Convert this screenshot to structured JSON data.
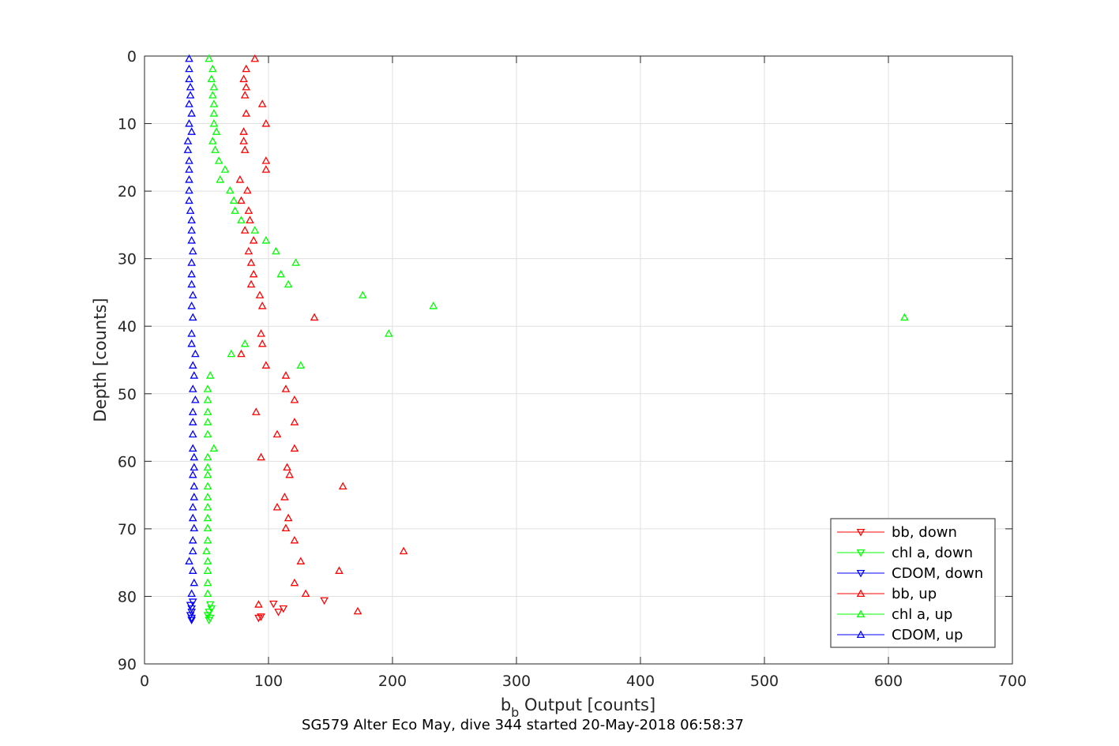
{
  "chart_data": {
    "type": "scatter",
    "xlabel": {
      "base": "b",
      "sub": "b",
      "rest": " Output [counts]"
    },
    "ylabel": "Depth [counts]",
    "caption": "SG579 Alter Eco May, dive 344 started 20-May-2018 06:58:37",
    "xlim": [
      0,
      700
    ],
    "ylim": [
      0,
      90
    ],
    "y_reversed": true,
    "grid": true,
    "legend_position": "bottom-right",
    "xticks": [
      "0",
      "100",
      "200",
      "300",
      "400",
      "500",
      "600",
      "700"
    ],
    "yticks": [
      "0",
      "10",
      "20",
      "30",
      "40",
      "50",
      "60",
      "70",
      "80",
      "90"
    ],
    "series": [
      {
        "name": "bb, down",
        "color": "#ff0000",
        "marker": "triangle-down",
        "points": [
          [
            104,
            81.1
          ],
          [
            108,
            82.3
          ],
          [
            112,
            81.8
          ],
          [
            92,
            83.2
          ],
          [
            94,
            83.0
          ],
          [
            145,
            80.6
          ]
        ]
      },
      {
        "name": "chl a, down",
        "color": "#00ff00",
        "marker": "triangle-down",
        "points": [
          [
            53,
            81.2
          ],
          [
            54,
            81.8
          ],
          [
            52,
            82.3
          ],
          [
            51,
            82.8
          ],
          [
            53,
            83.2
          ],
          [
            52,
            83.5
          ]
        ]
      },
      {
        "name": "CDOM, down",
        "color": "#0000ff",
        "marker": "triangle-down",
        "points": [
          [
            39,
            80.8
          ],
          [
            37,
            81.3
          ],
          [
            38,
            81.8
          ],
          [
            38,
            82.3
          ],
          [
            37,
            82.8
          ],
          [
            38,
            83.2
          ],
          [
            38,
            83.5
          ]
        ]
      },
      {
        "name": "bb, up",
        "color": "#ff0000",
        "marker": "triangle-up",
        "points": [
          [
            89,
            0.4
          ],
          [
            82,
            1.9
          ],
          [
            80,
            3.4
          ],
          [
            82,
            4.6
          ],
          [
            81,
            5.8
          ],
          [
            95,
            7.1
          ],
          [
            82,
            8.5
          ],
          [
            98,
            10.0
          ],
          [
            80,
            11.2
          ],
          [
            80,
            12.6
          ],
          [
            81,
            13.9
          ],
          [
            98,
            15.5
          ],
          [
            98,
            16.8
          ],
          [
            77,
            18.3
          ],
          [
            83,
            19.9
          ],
          [
            78,
            21.4
          ],
          [
            84,
            22.9
          ],
          [
            85,
            24.3
          ],
          [
            81,
            25.8
          ],
          [
            88,
            27.3
          ],
          [
            84,
            28.9
          ],
          [
            86,
            30.6
          ],
          [
            88,
            32.3
          ],
          [
            86,
            33.8
          ],
          [
            93,
            35.4
          ],
          [
            95,
            37.0
          ],
          [
            137,
            38.7
          ],
          [
            94,
            41.1
          ],
          [
            95,
            42.6
          ],
          [
            78,
            44.1
          ],
          [
            98,
            45.8
          ],
          [
            114,
            47.3
          ],
          [
            114,
            49.3
          ],
          [
            121,
            50.9
          ],
          [
            90,
            52.7
          ],
          [
            121,
            54.2
          ],
          [
            107,
            56.0
          ],
          [
            121,
            58.1
          ],
          [
            94,
            59.4
          ],
          [
            115,
            60.9
          ],
          [
            117,
            62.0
          ],
          [
            160,
            63.7
          ],
          [
            113,
            65.3
          ],
          [
            107,
            66.8
          ],
          [
            116,
            68.4
          ],
          [
            114,
            69.9
          ],
          [
            121,
            71.7
          ],
          [
            209,
            73.3
          ],
          [
            126,
            74.8
          ],
          [
            157,
            76.2
          ],
          [
            121,
            78.0
          ],
          [
            130,
            79.6
          ],
          [
            92,
            81.2
          ],
          [
            172,
            82.2
          ]
        ]
      },
      {
        "name": "chl a, up",
        "color": "#00ff00",
        "marker": "triangle-up",
        "points": [
          [
            52,
            0.4
          ],
          [
            55,
            1.9
          ],
          [
            54,
            3.4
          ],
          [
            56,
            4.6
          ],
          [
            55,
            5.8
          ],
          [
            56,
            7.1
          ],
          [
            56,
            8.5
          ],
          [
            56,
            10.0
          ],
          [
            58,
            11.2
          ],
          [
            55,
            12.6
          ],
          [
            57,
            13.9
          ],
          [
            60,
            15.5
          ],
          [
            65,
            16.8
          ],
          [
            61,
            18.3
          ],
          [
            69,
            19.9
          ],
          [
            72,
            21.4
          ],
          [
            73,
            22.9
          ],
          [
            78,
            24.3
          ],
          [
            89,
            25.8
          ],
          [
            98,
            27.3
          ],
          [
            106,
            28.9
          ],
          [
            122,
            30.6
          ],
          [
            110,
            32.3
          ],
          [
            116,
            33.8
          ],
          [
            176,
            35.4
          ],
          [
            233,
            37.0
          ],
          [
            613,
            38.7
          ],
          [
            197,
            41.1
          ],
          [
            81,
            42.6
          ],
          [
            70,
            44.1
          ],
          [
            126,
            45.8
          ],
          [
            53,
            47.3
          ],
          [
            51,
            49.3
          ],
          [
            51,
            50.9
          ],
          [
            51,
            52.7
          ],
          [
            51,
            54.2
          ],
          [
            51,
            56.0
          ],
          [
            56,
            58.1
          ],
          [
            51,
            59.4
          ],
          [
            51,
            60.9
          ],
          [
            51,
            62.0
          ],
          [
            51,
            63.7
          ],
          [
            51,
            65.3
          ],
          [
            51,
            66.8
          ],
          [
            51,
            68.4
          ],
          [
            51,
            69.9
          ],
          [
            51,
            71.7
          ],
          [
            50,
            73.3
          ],
          [
            51,
            74.8
          ],
          [
            51,
            76.2
          ],
          [
            51,
            78.0
          ],
          [
            51,
            79.6
          ]
        ]
      },
      {
        "name": "CDOM, up",
        "color": "#0000ff",
        "marker": "triangle-up",
        "points": [
          [
            36,
            0.4
          ],
          [
            36,
            1.9
          ],
          [
            36,
            3.4
          ],
          [
            37,
            4.6
          ],
          [
            37,
            5.8
          ],
          [
            36,
            7.1
          ],
          [
            38,
            8.5
          ],
          [
            36,
            10.0
          ],
          [
            38,
            11.2
          ],
          [
            35,
            12.6
          ],
          [
            35,
            13.9
          ],
          [
            36,
            15.5
          ],
          [
            36,
            16.8
          ],
          [
            36,
            18.3
          ],
          [
            36,
            19.9
          ],
          [
            36,
            21.4
          ],
          [
            37,
            22.9
          ],
          [
            38,
            24.3
          ],
          [
            38,
            25.8
          ],
          [
            38,
            27.3
          ],
          [
            39,
            28.9
          ],
          [
            38,
            30.6
          ],
          [
            38,
            32.3
          ],
          [
            38,
            33.8
          ],
          [
            39,
            35.4
          ],
          [
            38,
            37.0
          ],
          [
            39,
            38.7
          ],
          [
            38,
            41.1
          ],
          [
            38,
            42.6
          ],
          [
            41,
            44.1
          ],
          [
            39,
            45.8
          ],
          [
            40,
            47.3
          ],
          [
            39,
            49.3
          ],
          [
            41,
            50.9
          ],
          [
            39,
            52.7
          ],
          [
            39,
            54.2
          ],
          [
            39,
            56.0
          ],
          [
            39,
            58.1
          ],
          [
            40,
            59.4
          ],
          [
            40,
            60.9
          ],
          [
            39,
            62.0
          ],
          [
            40,
            63.7
          ],
          [
            40,
            65.3
          ],
          [
            39,
            66.8
          ],
          [
            39,
            68.4
          ],
          [
            40,
            69.9
          ],
          [
            39,
            71.7
          ],
          [
            39,
            73.3
          ],
          [
            36,
            74.8
          ],
          [
            39,
            76.2
          ],
          [
            40,
            78.0
          ],
          [
            38,
            79.6
          ]
        ]
      }
    ]
  }
}
